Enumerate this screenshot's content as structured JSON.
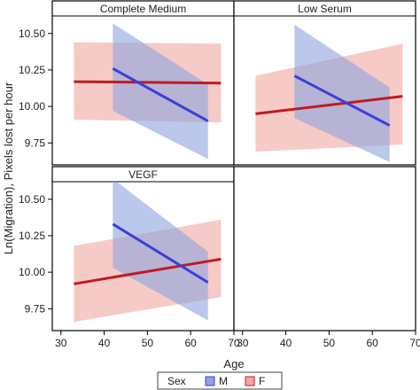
{
  "chart_data": {
    "type": "line",
    "title": "",
    "xlabel": "Age",
    "ylabel": "Ln(Migration), Pixels lost per hour",
    "xlim": [
      28,
      70
    ],
    "ylim": [
      9.6,
      10.62
    ],
    "x_ticks": [
      30,
      40,
      50,
      60,
      70
    ],
    "y_ticks": [
      9.75,
      10.0,
      10.25,
      10.5
    ],
    "grid": false,
    "legend": {
      "title": "Sex",
      "placement": "bottom"
    },
    "panels": [
      {
        "name": "Complete Medium",
        "series": [
          {
            "name": "M",
            "color": "#3b3fd6",
            "band_color": "#8ea3de",
            "x": [
              42,
              64
            ],
            "y": [
              10.26,
              9.9
            ],
            "band_upper": [
              10.57,
              10.15
            ],
            "band_lower": [
              9.97,
              9.64
            ]
          },
          {
            "name": "F",
            "color": "#c01a22",
            "band_color": "#f0a6a2",
            "x": [
              33,
              67
            ],
            "y": [
              10.17,
              10.16
            ],
            "band_upper": [
              10.44,
              10.43
            ],
            "band_lower": [
              9.91,
              9.89
            ]
          }
        ]
      },
      {
        "name": "Low Serum",
        "series": [
          {
            "name": "M",
            "color": "#3b3fd6",
            "band_color": "#8ea3de",
            "x": [
              42,
              64
            ],
            "y": [
              10.21,
              9.87
            ],
            "band_upper": [
              10.56,
              10.13
            ],
            "band_lower": [
              9.92,
              9.62
            ]
          },
          {
            "name": "F",
            "color": "#c01a22",
            "band_color": "#f0a6a2",
            "x": [
              33,
              67
            ],
            "y": [
              9.95,
              10.07
            ],
            "band_upper": [
              10.21,
              10.43
            ],
            "band_lower": [
              9.69,
              9.74
            ]
          }
        ]
      },
      {
        "name": "VEGF",
        "series": [
          {
            "name": "M",
            "color": "#3b3fd6",
            "band_color": "#8ea3de",
            "x": [
              42,
              64
            ],
            "y": [
              10.33,
              9.93
            ],
            "band_upper": [
              10.64,
              10.14
            ],
            "band_lower": [
              10.03,
              9.67
            ]
          },
          {
            "name": "F",
            "color": "#c01a22",
            "band_color": "#f0a6a2",
            "x": [
              33,
              67
            ],
            "y": [
              9.92,
              10.09
            ],
            "band_upper": [
              10.18,
              10.36
            ],
            "band_lower": [
              9.66,
              9.83
            ]
          }
        ]
      }
    ]
  }
}
